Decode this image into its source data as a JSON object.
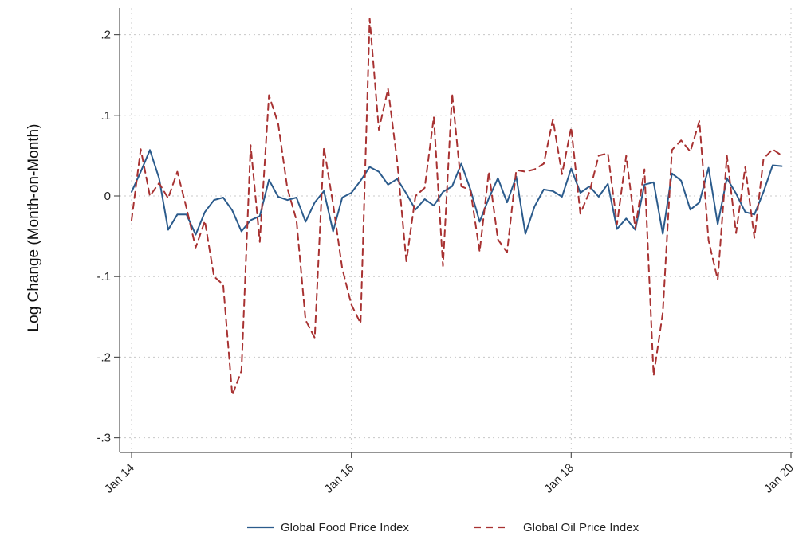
{
  "chart_data": {
    "type": "line",
    "title": "",
    "xlabel": "",
    "ylabel": "Log Change (Month-on-Month)",
    "ylim": [
      -0.32,
      0.23
    ],
    "y_ticks": [
      {
        "value": 0.2,
        "label": ".2"
      },
      {
        "value": 0.1,
        "label": ".1"
      },
      {
        "value": 0,
        "label": "0"
      },
      {
        "value": -0.1,
        "label": "-.1"
      },
      {
        "value": -0.2,
        "label": "-.2"
      },
      {
        "value": -0.3,
        "label": "-.3"
      }
    ],
    "x_ticks": [
      {
        "value": "2014-01",
        "label": "Jan 14"
      },
      {
        "value": "2016-01",
        "label": "Jan 16"
      },
      {
        "value": "2018-01",
        "label": "Jan 18"
      },
      {
        "value": "2020-01",
        "label": "Jan 20"
      }
    ],
    "x": [
      "2014-01",
      "2014-02",
      "2014-03",
      "2014-04",
      "2014-05",
      "2014-06",
      "2014-07",
      "2014-08",
      "2014-09",
      "2014-10",
      "2014-11",
      "2014-12",
      "2015-01",
      "2015-02",
      "2015-03",
      "2015-04",
      "2015-05",
      "2015-06",
      "2015-07",
      "2015-08",
      "2015-09",
      "2015-10",
      "2015-11",
      "2015-12",
      "2016-01",
      "2016-02",
      "2016-03",
      "2016-04",
      "2016-05",
      "2016-06",
      "2016-07",
      "2016-08",
      "2016-09",
      "2016-10",
      "2016-11",
      "2016-12",
      "2017-01",
      "2017-02",
      "2017-03",
      "2017-04",
      "2017-05",
      "2017-06",
      "2017-07",
      "2017-08",
      "2017-09",
      "2017-10",
      "2017-11",
      "2017-12",
      "2018-01",
      "2018-02",
      "2018-03",
      "2018-04",
      "2018-05",
      "2018-06",
      "2018-07",
      "2018-08",
      "2018-09",
      "2018-10",
      "2018-11",
      "2018-12",
      "2019-01",
      "2019-02",
      "2019-03",
      "2019-04",
      "2019-05",
      "2019-06",
      "2019-07",
      "2019-08",
      "2019-09",
      "2019-10",
      "2019-11",
      "2019-12"
    ],
    "series": [
      {
        "name": "Global Food Price Index",
        "color": "#2b5b8c",
        "dash": "solid",
        "values": [
          0.005,
          0.03,
          0.057,
          0.022,
          -0.042,
          -0.023,
          -0.023,
          -0.048,
          -0.02,
          -0.005,
          -0.002,
          -0.018,
          -0.044,
          -0.03,
          -0.025,
          0.02,
          -0.001,
          -0.005,
          -0.002,
          -0.032,
          -0.008,
          0.006,
          -0.044,
          -0.002,
          0.004,
          0.019,
          0.036,
          0.03,
          0.014,
          0.021,
          0.003,
          -0.017,
          -0.004,
          -0.012,
          0.005,
          0.012,
          0.04,
          0.008,
          -0.032,
          -0.003,
          0.022,
          -0.008,
          0.024,
          -0.047,
          -0.013,
          0.008,
          0.006,
          -0.001,
          0.034,
          0.004,
          0.012,
          -0.001,
          0.015,
          -0.041,
          -0.028,
          -0.042,
          0.014,
          0.017,
          -0.047,
          0.028,
          0.019,
          -0.017,
          -0.008,
          0.035,
          -0.035,
          0.022,
          0.003,
          -0.02,
          -0.023,
          0.005,
          0.038,
          0.037
        ]
      },
      {
        "name": "Global Oil Price Index",
        "color": "#a83232",
        "dash": "dashed",
        "values": [
          -0.03,
          0.058,
          0.0,
          0.016,
          -0.003,
          0.03,
          -0.015,
          -0.064,
          -0.031,
          -0.1,
          -0.11,
          -0.247,
          -0.217,
          0.063,
          -0.057,
          0.125,
          0.09,
          0.01,
          -0.03,
          -0.154,
          -0.176,
          0.06,
          -0.01,
          -0.09,
          -0.135,
          -0.158,
          0.22,
          0.082,
          0.133,
          0.043,
          -0.081,
          0.0,
          0.01,
          0.098,
          -0.087,
          0.127,
          0.012,
          0.007,
          -0.069,
          0.03,
          -0.054,
          -0.07,
          0.032,
          0.03,
          0.033,
          0.04,
          0.095,
          0.027,
          0.085,
          -0.022,
          0.005,
          0.05,
          0.053,
          -0.035,
          0.05,
          -0.04,
          0.033,
          -0.223,
          -0.145,
          0.057,
          0.069,
          0.055,
          0.093,
          -0.055,
          -0.104,
          0.05,
          -0.046,
          0.036,
          -0.052,
          0.046,
          0.058,
          0.05
        ]
      }
    ],
    "grid": true,
    "legend_position": "bottom"
  }
}
